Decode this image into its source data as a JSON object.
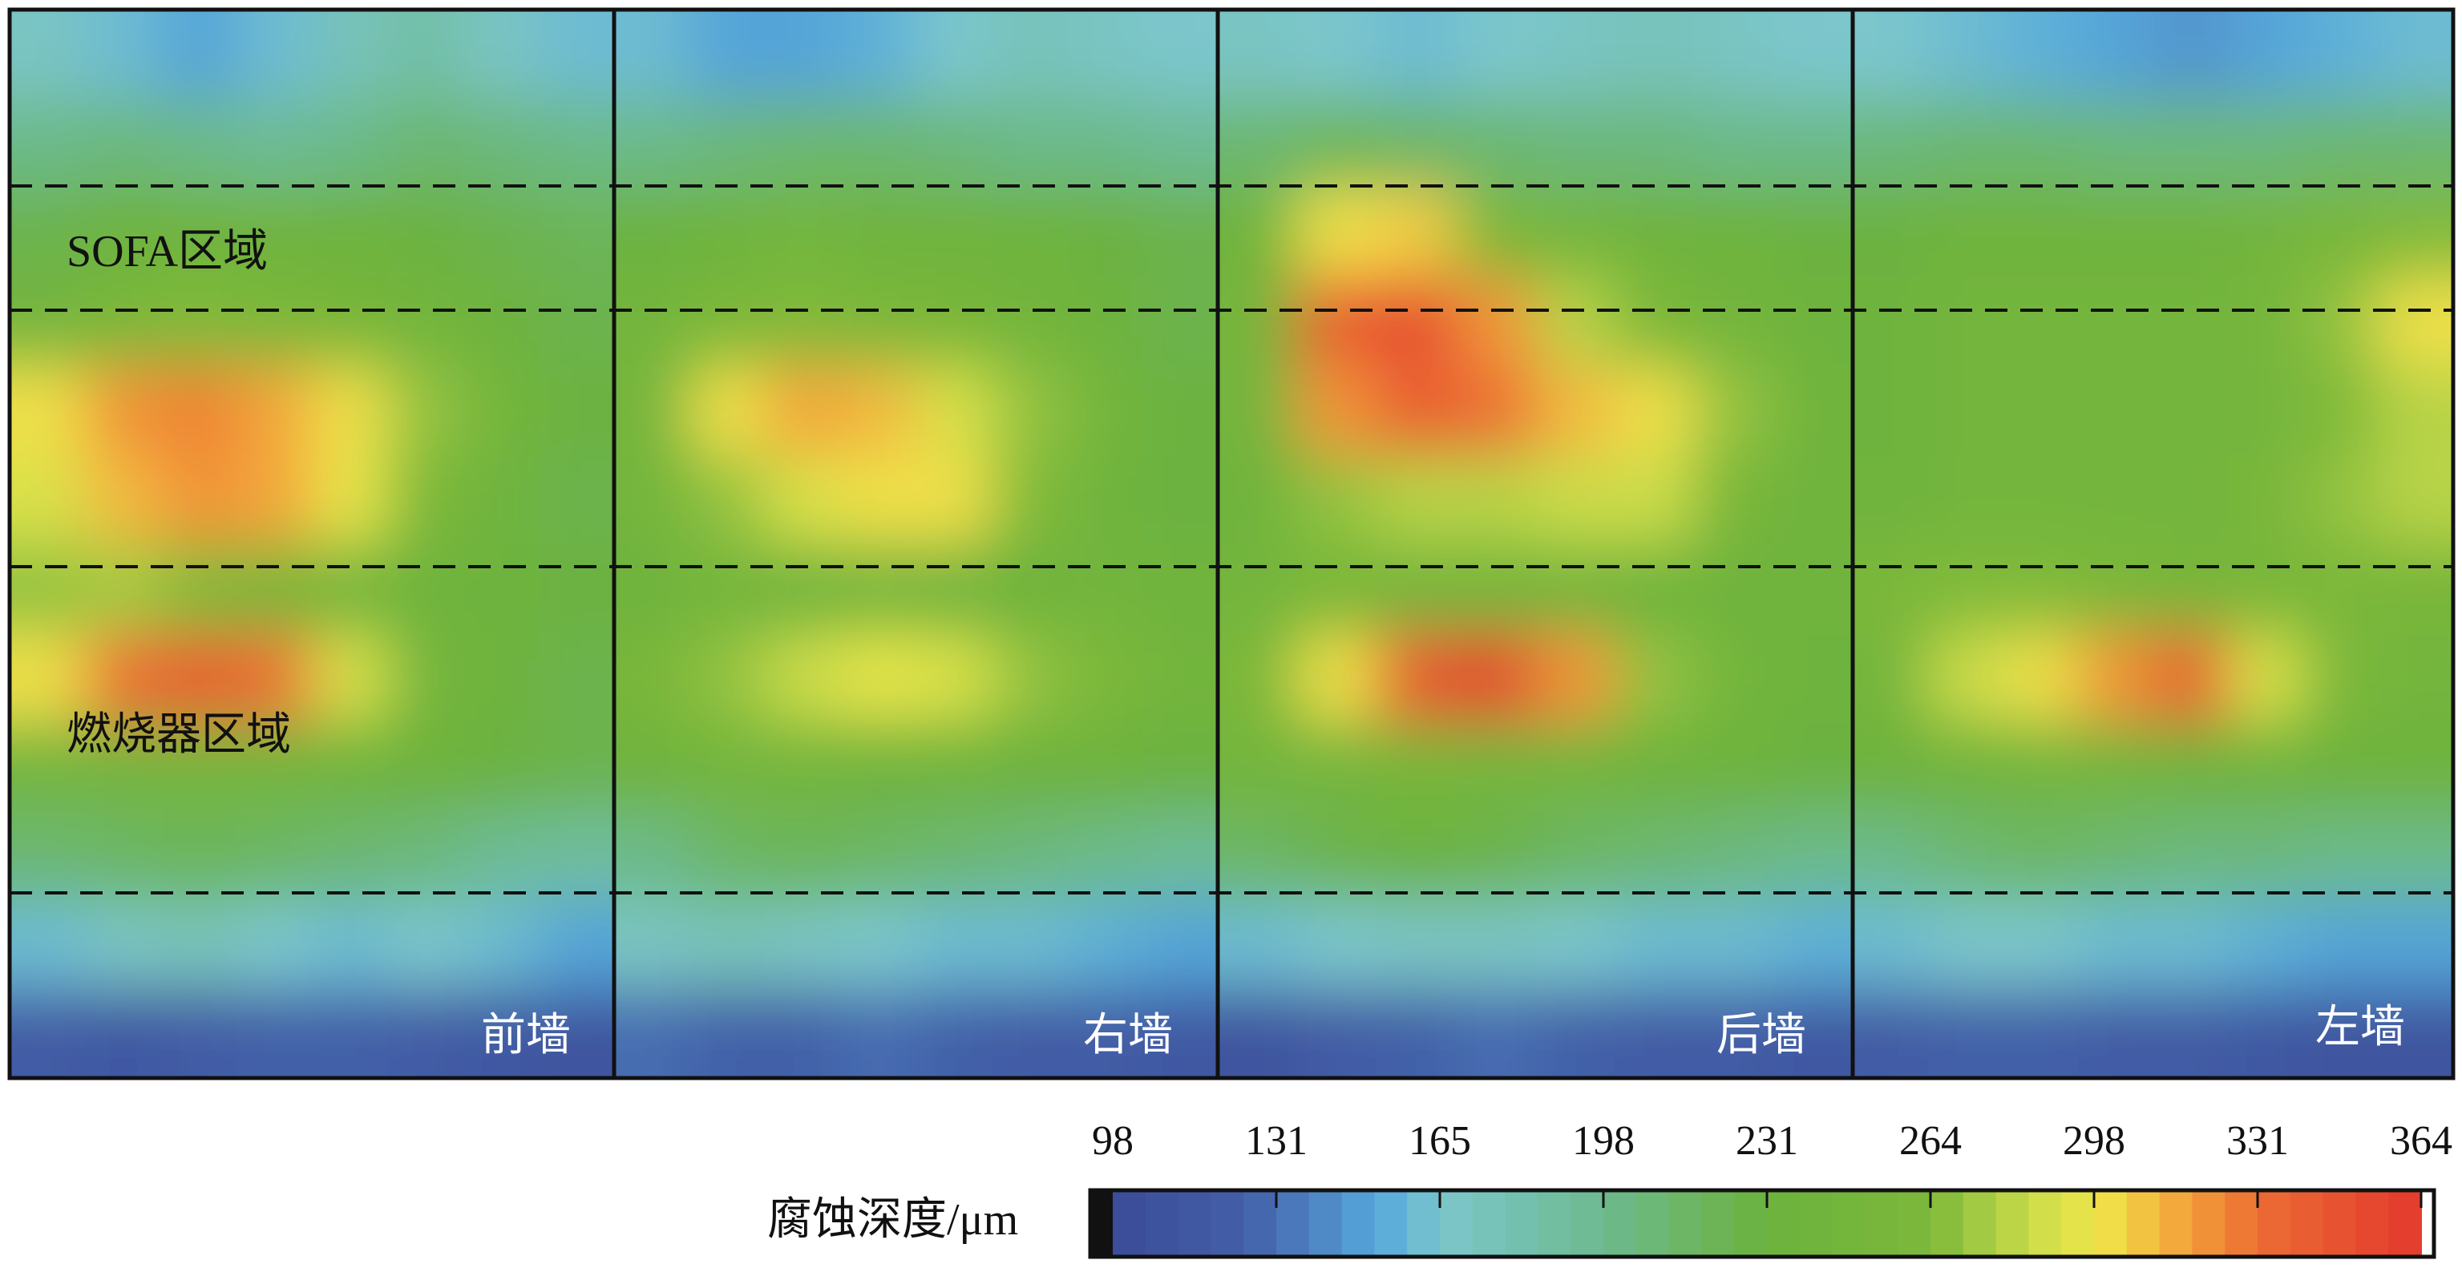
{
  "chart_data": {
    "type": "heatmap",
    "title": "",
    "colorbar": {
      "label": "腐蚀深度/μm",
      "ticks": [
        "98",
        "131",
        "165",
        "198",
        "231",
        "264",
        "298",
        "331",
        "364"
      ],
      "range": [
        98,
        364
      ],
      "colors": [
        {
          "v": 98,
          "c": "#3b4c98"
        },
        {
          "v": 125,
          "c": "#4360a8"
        },
        {
          "v": 140,
          "c": "#4f86c4"
        },
        {
          "v": 152,
          "c": "#55aadc"
        },
        {
          "v": 165,
          "c": "#7cc6cc"
        },
        {
          "v": 198,
          "c": "#6cba8e"
        },
        {
          "v": 231,
          "c": "#6cb23e"
        },
        {
          "v": 264,
          "c": "#7cb83a"
        },
        {
          "v": 285,
          "c": "#cbdc4a"
        },
        {
          "v": 298,
          "c": "#efe84a"
        },
        {
          "v": 315,
          "c": "#f3a63a"
        },
        {
          "v": 331,
          "c": "#ec6c34"
        },
        {
          "v": 364,
          "c": "#e2392d"
        }
      ]
    },
    "zones": [
      {
        "label": "SOFA区域"
      },
      {
        "label": "燃烧器区域"
      }
    ],
    "walls": [
      {
        "label": "前墙",
        "grid": [
          [
            170,
            160,
            150,
            160,
            175,
            185,
            170,
            160
          ],
          [
            200,
            205,
            200,
            195,
            200,
            210,
            205,
            200
          ],
          [
            225,
            235,
            240,
            240,
            235,
            230,
            225,
            220
          ],
          [
            250,
            260,
            265,
            260,
            255,
            245,
            235,
            225
          ],
          [
            300,
            320,
            325,
            315,
            300,
            270,
            245,
            230
          ],
          [
            290,
            310,
            320,
            315,
            295,
            260,
            240,
            225
          ],
          [
            270,
            275,
            265,
            255,
            250,
            240,
            235,
            230
          ],
          [
            300,
            330,
            340,
            330,
            290,
            250,
            235,
            225
          ],
          [
            245,
            250,
            250,
            245,
            240,
            235,
            230,
            225
          ],
          [
            210,
            215,
            220,
            215,
            210,
            205,
            195,
            190
          ],
          [
            160,
            170,
            175,
            165,
            160,
            165,
            160,
            150
          ],
          [
            120,
            115,
            120,
            125,
            125,
            120,
            115,
            110
          ]
        ]
      },
      {
        "label": "右墙",
        "grid": [
          [
            160,
            150,
            150,
            155,
            165,
            175,
            170,
            165
          ],
          [
            200,
            205,
            210,
            210,
            205,
            200,
            200,
            195
          ],
          [
            230,
            240,
            245,
            240,
            240,
            235,
            230,
            225
          ],
          [
            245,
            260,
            265,
            260,
            255,
            245,
            235,
            225
          ],
          [
            250,
            300,
            315,
            310,
            290,
            270,
            245,
            230
          ],
          [
            245,
            270,
            290,
            300,
            300,
            265,
            240,
            230
          ],
          [
            240,
            250,
            240,
            245,
            240,
            235,
            245,
            240
          ],
          [
            255,
            270,
            285,
            295,
            290,
            270,
            260,
            245
          ],
          [
            240,
            245,
            245,
            240,
            240,
            235,
            235,
            230
          ],
          [
            200,
            215,
            220,
            215,
            210,
            205,
            200,
            195
          ],
          [
            170,
            175,
            170,
            165,
            160,
            160,
            155,
            150
          ],
          [
            130,
            125,
            125,
            130,
            125,
            120,
            120,
            115
          ]
        ]
      },
      {
        "label": "后墙",
        "grid": [
          [
            170,
            165,
            160,
            165,
            170,
            175,
            170,
            165
          ],
          [
            210,
            220,
            215,
            210,
            205,
            205,
            200,
            200
          ],
          [
            240,
            300,
            305,
            260,
            245,
            240,
            235,
            230
          ],
          [
            250,
            340,
            350,
            320,
            280,
            260,
            245,
            235
          ],
          [
            245,
            320,
            340,
            330,
            310,
            300,
            270,
            240
          ],
          [
            240,
            270,
            280,
            280,
            285,
            285,
            255,
            240
          ],
          [
            245,
            255,
            250,
            245,
            245,
            240,
            240,
            240
          ],
          [
            260,
            300,
            345,
            355,
            320,
            270,
            245,
            235
          ],
          [
            245,
            250,
            255,
            250,
            245,
            240,
            235,
            230
          ],
          [
            215,
            225,
            230,
            225,
            215,
            210,
            205,
            200
          ],
          [
            160,
            165,
            170,
            170,
            165,
            160,
            160,
            155
          ],
          [
            110,
            120,
            125,
            130,
            125,
            120,
            120,
            115
          ]
        ]
      },
      {
        "label": "左墙",
        "grid": [
          [
            165,
            160,
            155,
            150,
            145,
            150,
            155,
            160
          ],
          [
            205,
            210,
            210,
            205,
            205,
            205,
            210,
            210
          ],
          [
            230,
            240,
            240,
            240,
            240,
            245,
            255,
            265
          ],
          [
            235,
            245,
            245,
            245,
            245,
            250,
            270,
            300
          ],
          [
            235,
            245,
            245,
            245,
            245,
            250,
            265,
            280
          ],
          [
            240,
            245,
            245,
            245,
            245,
            255,
            270,
            280
          ],
          [
            260,
            265,
            265,
            260,
            255,
            255,
            260,
            255
          ],
          [
            250,
            285,
            300,
            320,
            340,
            290,
            260,
            245
          ],
          [
            235,
            240,
            245,
            245,
            240,
            240,
            235,
            235
          ],
          [
            200,
            210,
            215,
            210,
            205,
            205,
            200,
            200
          ],
          [
            160,
            165,
            165,
            160,
            160,
            155,
            150,
            150
          ],
          [
            120,
            125,
            125,
            120,
            120,
            115,
            110,
            110
          ]
        ]
      }
    ]
  }
}
